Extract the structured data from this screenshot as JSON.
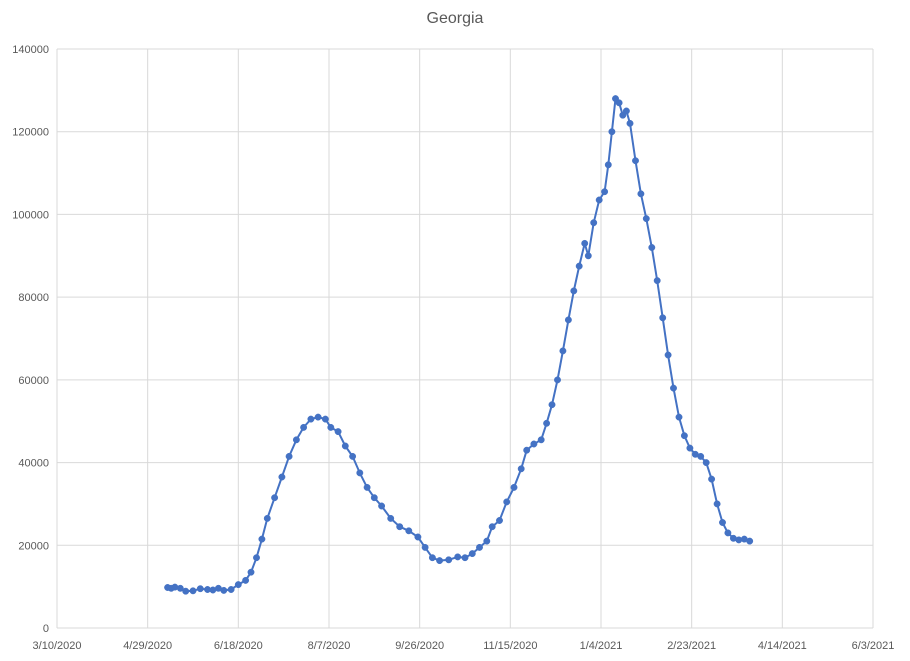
{
  "chart_data": {
    "type": "scatter",
    "title": "Georgia",
    "xlabel": "",
    "ylabel": "",
    "x_ticks": [
      "3/10/2020",
      "4/29/2020",
      "6/18/2020",
      "8/7/2020",
      "9/26/2020",
      "11/15/2020",
      "1/4/2021",
      "2/23/2021",
      "4/14/2021",
      "6/3/2021"
    ],
    "y_ticks": [
      "0",
      "20000",
      "40000",
      "60000",
      "80000",
      "100000",
      "120000",
      "140000"
    ],
    "xlim": [
      "3/10/2020",
      "6/3/2021"
    ],
    "ylim": [
      0,
      140000
    ],
    "grid": true,
    "colors": {
      "series": "#4472c4",
      "grid": "#d9d9d9",
      "text": "#595959"
    },
    "series": [
      {
        "markers": true,
        "line": true,
        "points": [
          [
            "5/10/2020",
            9800
          ],
          [
            "5/12/2020",
            9600
          ],
          [
            "5/14/2020",
            9900
          ],
          [
            "5/17/2020",
            9600
          ],
          [
            "5/20/2020",
            8900
          ],
          [
            "5/24/2020",
            9000
          ],
          [
            "5/28/2020",
            9500
          ],
          [
            "6/1/2020",
            9300
          ],
          [
            "6/4/2020",
            9200
          ],
          [
            "6/7/2020",
            9600
          ],
          [
            "6/10/2020",
            9100
          ],
          [
            "6/14/2020",
            9300
          ],
          [
            "6/18/2020",
            10500
          ],
          [
            "6/22/2020",
            11500
          ],
          [
            "6/25/2020",
            13500
          ],
          [
            "6/28/2020",
            17000
          ],
          [
            "7/1/2020",
            21500
          ],
          [
            "7/4/2020",
            26500
          ],
          [
            "7/8/2020",
            31500
          ],
          [
            "7/12/2020",
            36500
          ],
          [
            "7/16/2020",
            41500
          ],
          [
            "7/20/2020",
            45500
          ],
          [
            "7/24/2020",
            48500
          ],
          [
            "7/28/2020",
            50500
          ],
          [
            "8/1/2020",
            51000
          ],
          [
            "8/5/2020",
            50500
          ],
          [
            "8/8/2020",
            48500
          ],
          [
            "8/12/2020",
            47500
          ],
          [
            "8/16/2020",
            44000
          ],
          [
            "8/20/2020",
            41500
          ],
          [
            "8/24/2020",
            37500
          ],
          [
            "8/28/2020",
            34000
          ],
          [
            "9/1/2020",
            31500
          ],
          [
            "9/5/2020",
            29500
          ],
          [
            "9/10/2020",
            26500
          ],
          [
            "9/15/2020",
            24500
          ],
          [
            "9/20/2020",
            23500
          ],
          [
            "9/25/2020",
            22000
          ],
          [
            "9/29/2020",
            19500
          ],
          [
            "10/3/2020",
            17000
          ],
          [
            "10/7/2020",
            16300
          ],
          [
            "10/12/2020",
            16500
          ],
          [
            "10/17/2020",
            17200
          ],
          [
            "10/21/2020",
            17000
          ],
          [
            "10/25/2020",
            18000
          ],
          [
            "10/29/2020",
            19500
          ],
          [
            "11/2/2020",
            21000
          ],
          [
            "11/5/2020",
            24500
          ],
          [
            "11/9/2020",
            26000
          ],
          [
            "11/13/2020",
            30500
          ],
          [
            "11/17/2020",
            34000
          ],
          [
            "11/21/2020",
            38500
          ],
          [
            "11/24/2020",
            43000
          ],
          [
            "11/28/2020",
            44500
          ],
          [
            "12/2/2020",
            45500
          ],
          [
            "12/5/2020",
            49500
          ],
          [
            "12/8/2020",
            54000
          ],
          [
            "12/11/2020",
            60000
          ],
          [
            "12/14/2020",
            67000
          ],
          [
            "12/17/2020",
            74500
          ],
          [
            "12/20/2020",
            81500
          ],
          [
            "12/23/2020",
            87500
          ],
          [
            "12/26/2020",
            93000
          ],
          [
            "12/28/2020",
            90000
          ],
          [
            "12/31/2020",
            98000
          ],
          [
            "1/3/2021",
            103500
          ],
          [
            "1/6/2021",
            105500
          ],
          [
            "1/8/2021",
            112000
          ],
          [
            "1/10/2021",
            120000
          ],
          [
            "1/12/2021",
            128000
          ],
          [
            "1/14/2021",
            127000
          ],
          [
            "1/16/2021",
            124000
          ],
          [
            "1/18/2021",
            125000
          ],
          [
            "1/20/2021",
            122000
          ],
          [
            "1/23/2021",
            113000
          ],
          [
            "1/26/2021",
            105000
          ],
          [
            "1/29/2021",
            99000
          ],
          [
            "2/1/2021",
            92000
          ],
          [
            "2/4/2021",
            84000
          ],
          [
            "2/7/2021",
            75000
          ],
          [
            "2/10/2021",
            66000
          ],
          [
            "2/13/2021",
            58000
          ],
          [
            "2/16/2021",
            51000
          ],
          [
            "2/19/2021",
            46500
          ],
          [
            "2/22/2021",
            43500
          ],
          [
            "2/25/2021",
            42000
          ],
          [
            "2/28/2021",
            41500
          ],
          [
            "3/3/2021",
            40000
          ],
          [
            "3/6/2021",
            36000
          ],
          [
            "3/9/2021",
            30000
          ],
          [
            "3/12/2021",
            25500
          ],
          [
            "3/15/2021",
            23000
          ],
          [
            "3/18/2021",
            21700
          ],
          [
            "3/21/2021",
            21300
          ],
          [
            "3/24/2021",
            21500
          ],
          [
            "3/27/2021",
            21000
          ]
        ]
      }
    ]
  }
}
